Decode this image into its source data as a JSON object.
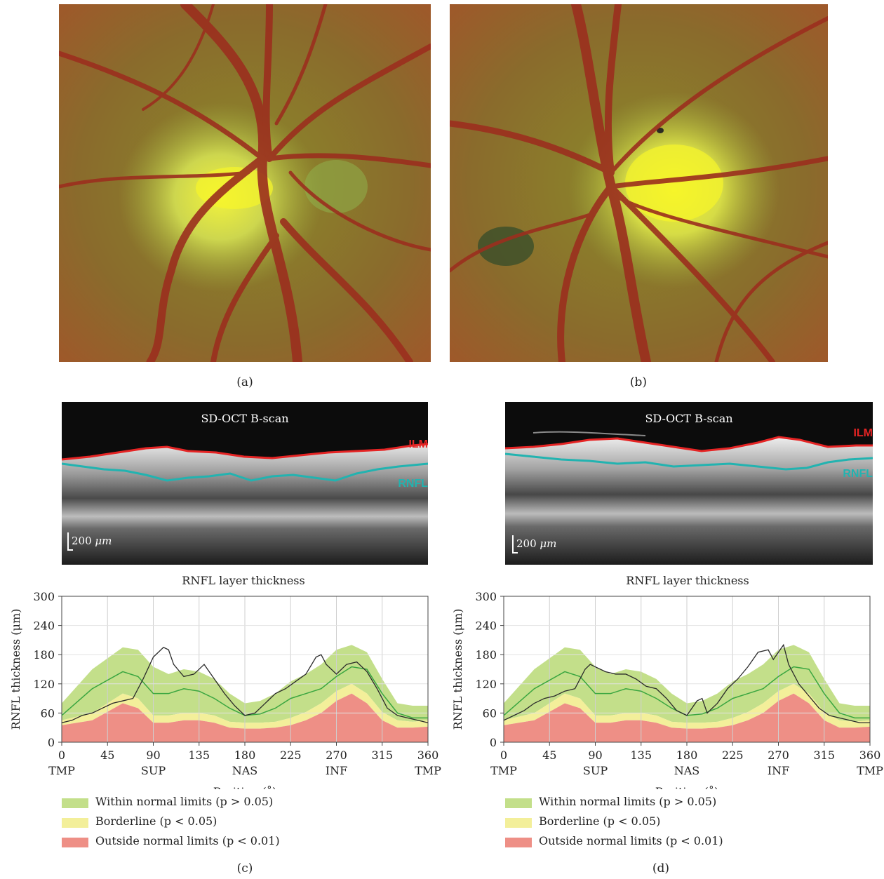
{
  "panels": {
    "a": "(a)",
    "b": "(b)",
    "c": "(c)",
    "d": "(d)"
  },
  "oct": {
    "title": "SD-OCT B-scan",
    "ilm_label": "ILM",
    "rnfl_label": "RNFL",
    "scale_value": "200",
    "scale_unit": "μm"
  },
  "legend": {
    "within": {
      "text": "Within normal limits (p > 0.05)",
      "color": "#c3df8a"
    },
    "borderline": {
      "text": "Borderline (p < 0.05)",
      "color": "#f3ef9a"
    },
    "outside": {
      "text": "Outside normal limits (p < 0.01)",
      "color": "#ee8f86"
    }
  },
  "chart_data": [
    {
      "type": "area",
      "title": "RNFL layer thickness",
      "xlabel": "Position (˚)",
      "ylabel": "RNFL thickness (μm)",
      "xlim": [
        0,
        360
      ],
      "ylim": [
        0,
        300
      ],
      "xticks": [
        0,
        45,
        90,
        135,
        180,
        225,
        270,
        315,
        360
      ],
      "yticks": [
        0,
        60,
        120,
        180,
        240,
        300
      ],
      "region_labels": [
        {
          "x": 0,
          "text": "TMP"
        },
        {
          "x": 90,
          "text": "SUP"
        },
        {
          "x": 180,
          "text": "NAS"
        },
        {
          "x": 270,
          "text": "INF"
        },
        {
          "x": 360,
          "text": "TMP"
        }
      ],
      "grid": true,
      "normative_x": [
        0,
        30,
        60,
        75,
        90,
        105,
        120,
        135,
        150,
        165,
        180,
        195,
        210,
        225,
        240,
        255,
        270,
        285,
        300,
        315,
        330,
        345,
        360
      ],
      "outside_upper": [
        35,
        45,
        80,
        70,
        40,
        40,
        45,
        45,
        40,
        30,
        28,
        28,
        30,
        35,
        45,
        60,
        85,
        100,
        80,
        45,
        30,
        30,
        32
      ],
      "borderline_upper": [
        45,
        60,
        100,
        90,
        55,
        55,
        60,
        60,
        55,
        42,
        40,
        40,
        42,
        50,
        62,
        80,
        105,
        120,
        100,
        62,
        45,
        42,
        45
      ],
      "within_upper": [
        80,
        150,
        195,
        190,
        155,
        140,
        150,
        145,
        130,
        100,
        80,
        85,
        100,
        125,
        140,
        160,
        190,
        200,
        185,
        130,
        80,
        75,
        75
      ],
      "mean": [
        55,
        110,
        145,
        135,
        100,
        100,
        110,
        105,
        90,
        70,
        55,
        58,
        70,
        90,
        100,
        110,
        135,
        155,
        150,
        100,
        60,
        50,
        50
      ],
      "series": [
        {
          "x": [
            0,
            10,
            20,
            30,
            40,
            50,
            60,
            70,
            80,
            90,
            95,
            100,
            105,
            110,
            120,
            130,
            140,
            150,
            160,
            170,
            180,
            190,
            200,
            210,
            220,
            230,
            240,
            250,
            255,
            260,
            270,
            280,
            290,
            300,
            310,
            320,
            330,
            340,
            350,
            360
          ],
          "y": [
            40,
            45,
            55,
            60,
            70,
            80,
            85,
            90,
            130,
            175,
            185,
            195,
            190,
            160,
            135,
            140,
            160,
            130,
            100,
            75,
            55,
            60,
            80,
            100,
            110,
            125,
            140,
            175,
            180,
            160,
            140,
            160,
            165,
            145,
            110,
            70,
            55,
            50,
            45,
            40
          ]
        }
      ]
    },
    {
      "type": "area",
      "title": "RNFL layer thickness",
      "xlabel": "Position (˚)",
      "ylabel": "RNFL thickness (μm)",
      "xlim": [
        0,
        360
      ],
      "ylim": [
        0,
        300
      ],
      "xticks": [
        0,
        45,
        90,
        135,
        180,
        225,
        270,
        315,
        360
      ],
      "yticks": [
        0,
        60,
        120,
        180,
        240,
        300
      ],
      "region_labels": [
        {
          "x": 0,
          "text": "TMP"
        },
        {
          "x": 90,
          "text": "SUP"
        },
        {
          "x": 180,
          "text": "NAS"
        },
        {
          "x": 270,
          "text": "INF"
        },
        {
          "x": 360,
          "text": "TMP"
        }
      ],
      "grid": true,
      "normative_x": [
        0,
        30,
        60,
        75,
        90,
        105,
        120,
        135,
        150,
        165,
        180,
        195,
        210,
        225,
        240,
        255,
        270,
        285,
        300,
        315,
        330,
        345,
        360
      ],
      "outside_upper": [
        35,
        45,
        80,
        70,
        40,
        40,
        45,
        45,
        40,
        30,
        28,
        28,
        30,
        35,
        45,
        60,
        85,
        100,
        80,
        45,
        30,
        30,
        32
      ],
      "borderline_upper": [
        45,
        60,
        100,
        90,
        55,
        55,
        60,
        60,
        55,
        42,
        40,
        40,
        42,
        50,
        62,
        80,
        105,
        120,
        100,
        62,
        45,
        42,
        45
      ],
      "within_upper": [
        80,
        150,
        195,
        190,
        155,
        140,
        150,
        145,
        130,
        100,
        80,
        85,
        100,
        125,
        140,
        160,
        190,
        200,
        185,
        130,
        80,
        75,
        75
      ],
      "mean": [
        55,
        110,
        145,
        135,
        100,
        100,
        110,
        105,
        90,
        70,
        55,
        58,
        70,
        90,
        100,
        110,
        135,
        155,
        150,
        100,
        60,
        50,
        50
      ],
      "series": [
        {
          "x": [
            0,
            10,
            20,
            30,
            40,
            50,
            60,
            70,
            80,
            85,
            90,
            100,
            110,
            120,
            130,
            140,
            150,
            160,
            170,
            180,
            190,
            195,
            200,
            210,
            220,
            230,
            240,
            250,
            260,
            265,
            270,
            275,
            280,
            290,
            300,
            310,
            320,
            330,
            340,
            350,
            360
          ],
          "y": [
            45,
            55,
            65,
            80,
            90,
            95,
            105,
            110,
            150,
            160,
            155,
            145,
            140,
            140,
            130,
            115,
            110,
            90,
            65,
            55,
            85,
            90,
            60,
            80,
            110,
            130,
            155,
            185,
            190,
            170,
            185,
            200,
            160,
            120,
            95,
            70,
            55,
            50,
            45,
            40,
            40
          ]
        }
      ]
    }
  ]
}
